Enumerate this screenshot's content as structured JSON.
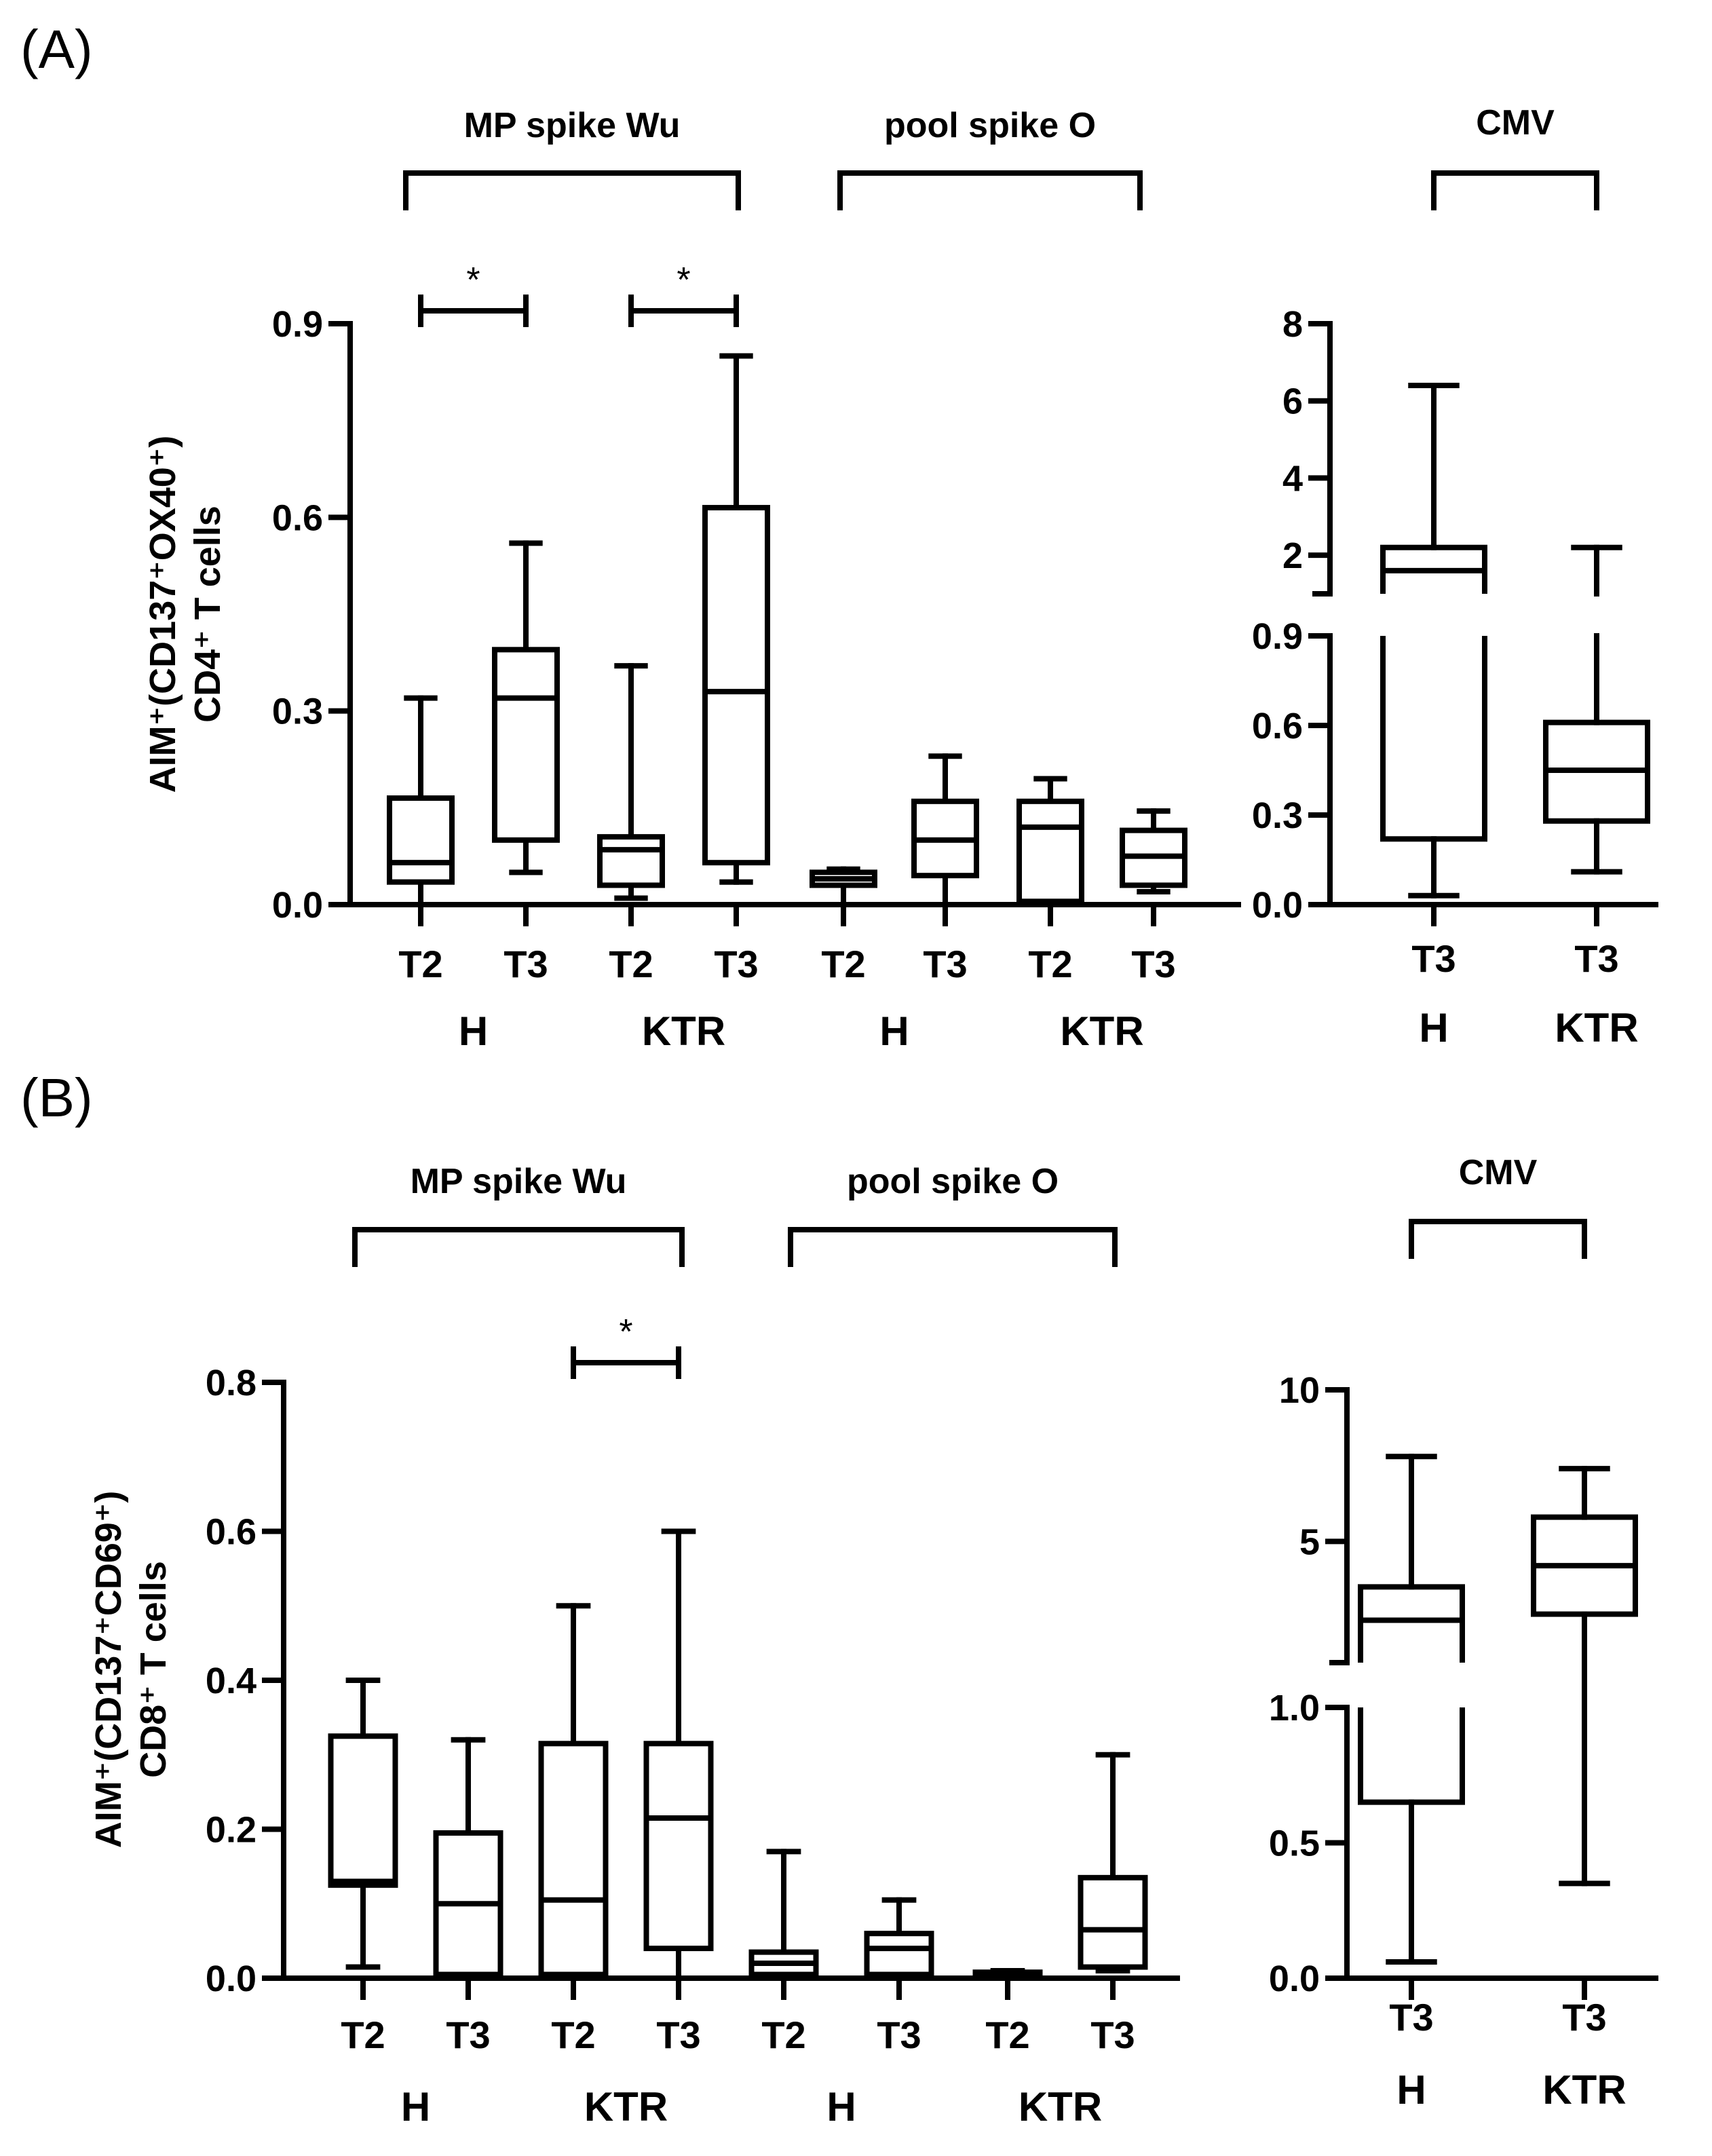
{
  "chart_data": [
    {
      "type": "box",
      "panel": "(A)",
      "ylabel_line1": "AIM⁺(CD137⁺OX40⁺)",
      "ylabel_line2": "CD4⁺ T cells",
      "ylim": [
        0,
        0.9
      ],
      "yticks": [
        "0.0",
        "0.3",
        "0.6",
        "0.9"
      ],
      "groups": [
        {
          "title": "MP spike Wu",
          "subjects": [
            "H",
            "KTR"
          ]
        },
        {
          "title": "pool spike O",
          "subjects": [
            "H",
            "KTR"
          ]
        }
      ],
      "boxes": [
        {
          "label": "T2",
          "subject": "H",
          "antigen": "MP spike Wu",
          "min": 0.0,
          "q1": 0.035,
          "median": 0.065,
          "q3": 0.165,
          "max": 0.32
        },
        {
          "label": "T3",
          "subject": "H",
          "antigen": "MP spike Wu",
          "min": 0.05,
          "q1": 0.1,
          "median": 0.32,
          "q3": 0.395,
          "max": 0.56
        },
        {
          "label": "T2",
          "subject": "KTR",
          "antigen": "MP spike Wu",
          "min": 0.01,
          "q1": 0.03,
          "median": 0.085,
          "q3": 0.105,
          "max": 0.37
        },
        {
          "label": "T3",
          "subject": "KTR",
          "antigen": "MP spike Wu",
          "min": 0.035,
          "q1": 0.065,
          "median": 0.33,
          "q3": 0.615,
          "max": 0.85
        },
        {
          "label": "T2",
          "subject": "H",
          "antigen": "pool spike O",
          "min": 0.0,
          "q1": 0.03,
          "median": 0.04,
          "q3": 0.05,
          "max": 0.055
        },
        {
          "label": "T3",
          "subject": "H",
          "antigen": "pool spike O",
          "min": 0.0,
          "q1": 0.045,
          "median": 0.1,
          "q3": 0.16,
          "max": 0.23
        },
        {
          "label": "T2",
          "subject": "KTR",
          "antigen": "pool spike O",
          "min": 0.0,
          "q1": 0.005,
          "median": 0.12,
          "q3": 0.16,
          "max": 0.195
        },
        {
          "label": "T3",
          "subject": "KTR",
          "antigen": "pool spike O",
          "min": 0.02,
          "q1": 0.03,
          "median": 0.075,
          "q3": 0.115,
          "max": 0.145
        }
      ],
      "significance": [
        {
          "pair": [
            0,
            1
          ],
          "label": "*"
        },
        {
          "pair": [
            2,
            3
          ],
          "label": "*"
        }
      ]
    },
    {
      "type": "box",
      "panel": "(A)",
      "title": "CMV",
      "broken_axis": true,
      "yticks_lower": [
        "0.0",
        "0.3",
        "0.6",
        "0.9"
      ],
      "yticks_upper": [
        "2",
        "4",
        "6",
        "8"
      ],
      "ylim_lower": [
        0,
        0.9
      ],
      "ylim_upper": [
        1.0,
        8
      ],
      "subjects": [
        "H",
        "KTR"
      ],
      "boxes": [
        {
          "label": "T3",
          "subject": "H",
          "min": 0.03,
          "q1": 0.22,
          "median": 1.6,
          "q3": 2.2,
          "max": 6.4
        },
        {
          "label": "T3",
          "subject": "KTR",
          "min": 0.11,
          "q1": 0.28,
          "median": 0.45,
          "q3": 0.61,
          "max": 2.2
        }
      ]
    },
    {
      "type": "box",
      "panel": "(B)",
      "ylabel_line1": "AIM⁺(CD137⁺CD69⁺)",
      "ylabel_line2": "CD8⁺ T cells",
      "ylim": [
        0,
        0.8
      ],
      "yticks": [
        "0.0",
        "0.2",
        "0.4",
        "0.6",
        "0.8"
      ],
      "groups": [
        {
          "title": "MP spike Wu",
          "subjects": [
            "H",
            "KTR"
          ]
        },
        {
          "title": "pool spike O",
          "subjects": [
            "H",
            "KTR"
          ]
        }
      ],
      "boxes": [
        {
          "label": "T2",
          "subject": "H",
          "antigen": "MP spike Wu",
          "min": 0.015,
          "q1": 0.125,
          "median": 0.13,
          "q3": 0.325,
          "max": 0.4
        },
        {
          "label": "T3",
          "subject": "H",
          "antigen": "MP spike Wu",
          "min": 0.005,
          "q1": 0.005,
          "median": 0.1,
          "q3": 0.195,
          "max": 0.32
        },
        {
          "label": "T2",
          "subject": "KTR",
          "antigen": "MP spike Wu",
          "min": 0.005,
          "q1": 0.005,
          "median": 0.105,
          "q3": 0.315,
          "max": 0.5
        },
        {
          "label": "T3",
          "subject": "KTR",
          "antigen": "MP spike Wu",
          "min": 0.0,
          "q1": 0.04,
          "median": 0.215,
          "q3": 0.315,
          "max": 0.6
        },
        {
          "label": "T2",
          "subject": "H",
          "antigen": "pool spike O",
          "min": 0.0,
          "q1": 0.005,
          "median": 0.02,
          "q3": 0.035,
          "max": 0.17
        },
        {
          "label": "T3",
          "subject": "H",
          "antigen": "pool spike O",
          "min": 0.0,
          "q1": 0.005,
          "median": 0.04,
          "q3": 0.06,
          "max": 0.105
        },
        {
          "label": "T2",
          "subject": "KTR",
          "antigen": "pool spike O",
          "min": 0.0,
          "q1": 0.002,
          "median": 0.005,
          "q3": 0.008,
          "max": 0.01
        },
        {
          "label": "T3",
          "subject": "KTR",
          "antigen": "pool spike O",
          "min": 0.01,
          "q1": 0.015,
          "median": 0.065,
          "q3": 0.135,
          "max": 0.3
        }
      ],
      "significance": [
        {
          "pair": [
            2,
            3
          ],
          "label": "*"
        }
      ]
    },
    {
      "type": "box",
      "panel": "(B)",
      "title": "CMV",
      "broken_axis": true,
      "yticks_lower": [
        "0.0",
        "0.5",
        "1.0"
      ],
      "yticks_upper": [
        "5",
        "10"
      ],
      "ylim_lower": [
        0,
        1.0
      ],
      "ylim_upper": [
        1.0,
        10
      ],
      "subjects": [
        "H",
        "KTR"
      ],
      "boxes": [
        {
          "label": "T3",
          "subject": "H",
          "min": 0.06,
          "q1": 0.65,
          "median": 2.4,
          "q3": 3.5,
          "max": 7.8
        },
        {
          "label": "T3",
          "subject": "KTR",
          "min": 0.35,
          "q1": 2.6,
          "median": 4.2,
          "q3": 5.8,
          "max": 7.4
        }
      ]
    }
  ]
}
